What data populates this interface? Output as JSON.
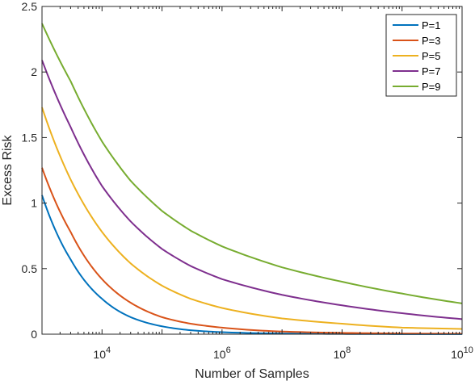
{
  "chart_data": {
    "type": "line",
    "xlabel": "Number of Samples",
    "ylabel": "Excess Risk",
    "x_scale": "log",
    "xlim": [
      1000,
      10000000000
    ],
    "ylim": [
      0,
      2.5
    ],
    "x_ticks": [
      {
        "value": 10000,
        "base": "10",
        "exp": "4"
      },
      {
        "value": 1000000,
        "base": "10",
        "exp": "6"
      },
      {
        "value": 100000000,
        "base": "10",
        "exp": "8"
      },
      {
        "value": 10000000000,
        "base": "10",
        "exp": "10"
      }
    ],
    "y_ticks": [
      {
        "value": 0,
        "label": "0"
      },
      {
        "value": 0.5,
        "label": "0.5"
      },
      {
        "value": 1,
        "label": "1"
      },
      {
        "value": 1.5,
        "label": "1.5"
      },
      {
        "value": 2,
        "label": "2"
      },
      {
        "value": 2.5,
        "label": "2.5"
      }
    ],
    "grid": false,
    "legend_position": "top-right",
    "x": [
      1000,
      3000,
      10000,
      30000,
      100000,
      300000,
      1000000,
      10000000,
      100000000,
      1000000000,
      10000000000
    ],
    "series": [
      {
        "name": "P=1",
        "color": "#0072BD",
        "values": [
          1.06,
          0.57,
          0.27,
          0.13,
          0.06,
          0.03,
          0.015,
          0.005,
          0.002,
          0.001,
          0.0005
        ]
      },
      {
        "name": "P=3",
        "color": "#D95319",
        "values": [
          1.27,
          0.78,
          0.42,
          0.24,
          0.13,
          0.08,
          0.05,
          0.02,
          0.01,
          0.005,
          0.003
        ]
      },
      {
        "name": "P=5",
        "color": "#EDB120",
        "values": [
          1.73,
          1.18,
          0.78,
          0.54,
          0.37,
          0.27,
          0.2,
          0.12,
          0.08,
          0.05,
          0.04
        ]
      },
      {
        "name": "P=7",
        "color": "#7E2F8E",
        "values": [
          2.09,
          1.58,
          1.13,
          0.86,
          0.65,
          0.52,
          0.42,
          0.3,
          0.22,
          0.16,
          0.115
        ]
      },
      {
        "name": "P=9",
        "color": "#77AC30",
        "values": [
          2.37,
          1.93,
          1.47,
          1.17,
          0.94,
          0.79,
          0.67,
          0.51,
          0.4,
          0.31,
          0.235
        ]
      }
    ]
  }
}
